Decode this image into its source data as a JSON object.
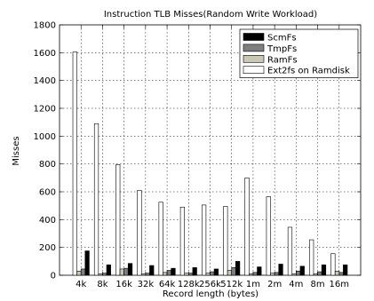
{
  "chart_data": {
    "type": "bar",
    "title": "Instruction TLB Misses(Random Write Workload)",
    "xlabel": "Record length (bytes)",
    "ylabel": "Misses",
    "ylim": [
      0,
      1800
    ],
    "yticks": [
      0,
      200,
      400,
      600,
      800,
      1000,
      1200,
      1400,
      1600,
      1800
    ],
    "grid": true,
    "legend_position": "top-right",
    "categories": [
      "4k",
      "8k",
      "16k",
      "32k",
      "64k",
      "128k",
      "256k",
      "512k",
      "1m",
      "2m",
      "4m",
      "8m",
      "16m"
    ],
    "series": [
      {
        "name": "Ext2fs on Ramdisk",
        "color": "#ffffff",
        "values": [
          1605,
          1090,
          795,
          610,
          525,
          490,
          505,
          495,
          700,
          565,
          345,
          255,
          155
        ]
      },
      {
        "name": "RamFs",
        "color": "#c8c8b4",
        "values": [
          30,
          10,
          45,
          10,
          20,
          15,
          15,
          35,
          10,
          15,
          10,
          10,
          30
        ]
      },
      {
        "name": "TmpFs",
        "color": "#7f7f7f",
        "values": [
          45,
          15,
          50,
          15,
          35,
          15,
          25,
          55,
          20,
          20,
          30,
          25,
          20
        ]
      },
      {
        "name": "ScmFs",
        "color": "#000000",
        "values": [
          175,
          75,
          85,
          70,
          50,
          55,
          45,
          100,
          60,
          80,
          65,
          75,
          75
        ]
      }
    ],
    "legend_order": [
      "ScmFs",
      "TmpFs",
      "RamFs",
      "Ext2fs on Ramdisk"
    ]
  }
}
